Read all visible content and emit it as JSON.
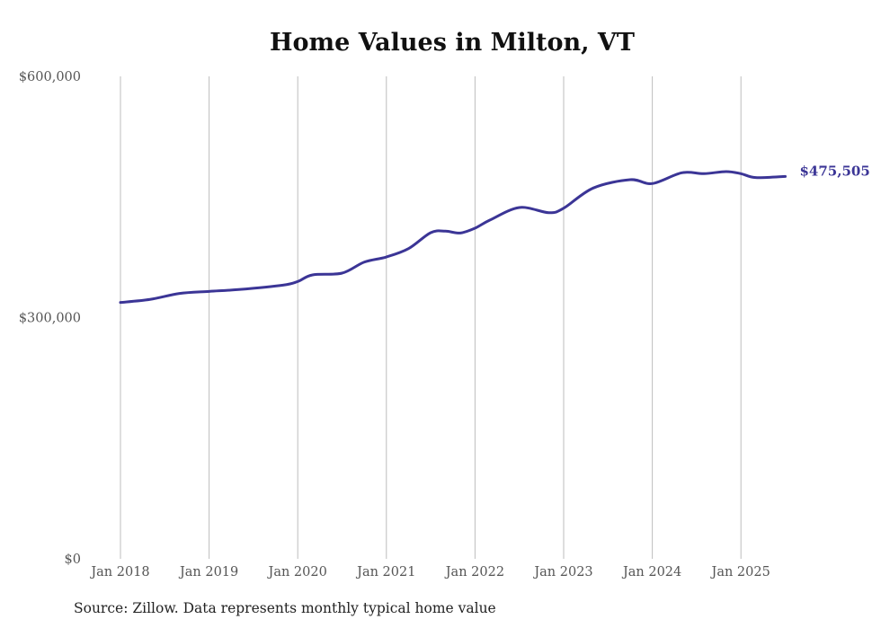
{
  "chart_data": {
    "type": "line",
    "title": "Home Values in Milton, VT",
    "source": "Source: Zillow. Data represents monthly typical home value",
    "xlabel": "",
    "ylabel": "",
    "ylim": [
      0,
      600000
    ],
    "y_ticks": [
      {
        "value": 0,
        "label": "$0"
      },
      {
        "value": 300000,
        "label": "$300,000"
      },
      {
        "value": 600000,
        "label": "$600,000"
      }
    ],
    "x_ticks": [
      {
        "month": 0,
        "label": "Jan 2018"
      },
      {
        "month": 12,
        "label": "Jan 2019"
      },
      {
        "month": 24,
        "label": "Jan 2020"
      },
      {
        "month": 36,
        "label": "Jan 2021"
      },
      {
        "month": 48,
        "label": "Jan 2022"
      },
      {
        "month": 60,
        "label": "Jan 2023"
      },
      {
        "month": 72,
        "label": "Jan 2024"
      },
      {
        "month": 84,
        "label": "Jan 2025"
      }
    ],
    "x_range_months": [
      0,
      90
    ],
    "grid": "vertical",
    "series": [
      {
        "name": "Typical home value",
        "color": "#3b3596",
        "x_months": [
          0,
          4,
          8,
          12,
          16,
          22,
          24,
          26,
          30,
          33,
          36,
          39,
          42,
          44,
          46,
          48,
          50,
          54,
          58,
          60,
          64,
          69,
          72,
          76,
          79,
          82,
          84,
          86,
          90
        ],
        "values": [
          318800,
          322600,
          330000,
          332600,
          334900,
          340400,
          344900,
          353100,
          355300,
          369000,
          375400,
          385800,
          405600,
          407500,
          405200,
          411200,
          421200,
          436900,
          430500,
          436100,
          461100,
          471500,
          466700,
          480100,
          479000,
          481600,
          479000,
          474100,
          475505
        ]
      }
    ],
    "end_label": "$475,505"
  }
}
